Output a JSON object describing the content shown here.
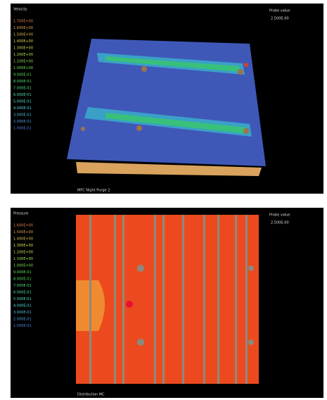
{
  "panels": [
    {
      "legend_title": "Velocity",
      "legend": [
        "1.700E+00",
        "1.600E+00",
        "1.500E+00",
        "1.400E+00",
        "1.300E+00",
        "1.200E+00",
        "1.100E+00",
        "1.000E+00",
        "9.000E-01",
        "8.000E-01",
        "7.000E-01",
        "6.000E-01",
        "5.000E-01",
        "4.000E-01",
        "3.000E-01",
        "2.000E-01",
        "1.000E-01"
      ],
      "probe_label": "Probe value",
      "probe_value": "2.500E-00",
      "caption": "MFC Night Purge 2"
    },
    {
      "legend_title": "Pressure",
      "legend": [
        "1.600E+00",
        "1.500E+00",
        "1.400E+00",
        "1.300E+00",
        "1.200E+00",
        "1.100E+00",
        "1.000E+00",
        "9.000E-01",
        "8.000E-01",
        "7.000E-01",
        "6.000E-01",
        "5.000E-01",
        "4.000E-01",
        "3.000E-01",
        "2.000E-01",
        "1.000E-01"
      ],
      "probe_label": "Probe value",
      "probe_value": "2.500E-00",
      "caption": "Distribution MC"
    }
  ]
}
